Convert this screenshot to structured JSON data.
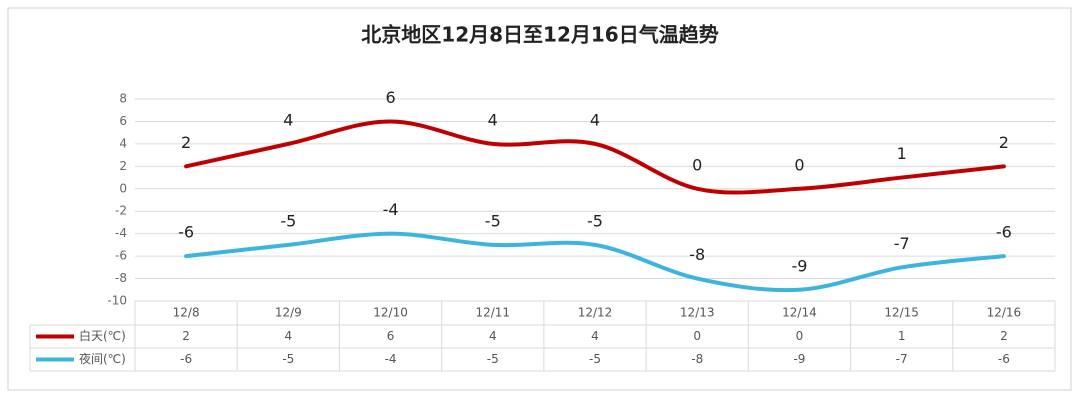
{
  "chart_data": {
    "type": "line",
    "title": "北京地区12月8日至12月16日气温趋势",
    "categories": [
      "12/8",
      "12/9",
      "12/10",
      "12/11",
      "12/12",
      "12/13",
      "12/14",
      "12/15",
      "12/16"
    ],
    "series": [
      {
        "name": "白天(℃)",
        "color": "#c00000",
        "values": [
          2,
          4,
          6,
          4,
          4,
          0,
          0,
          1,
          2
        ]
      },
      {
        "name": "夜间(℃)",
        "color": "#3cb4e0",
        "values": [
          -6,
          -5,
          -4,
          -5,
          -5,
          -8,
          -9,
          -7,
          -6
        ]
      }
    ],
    "ylim": [
      -10,
      8
    ],
    "yticks": [
      -10,
      -8,
      -6,
      -4,
      -2,
      0,
      2,
      4,
      6,
      8
    ],
    "grid": true
  }
}
